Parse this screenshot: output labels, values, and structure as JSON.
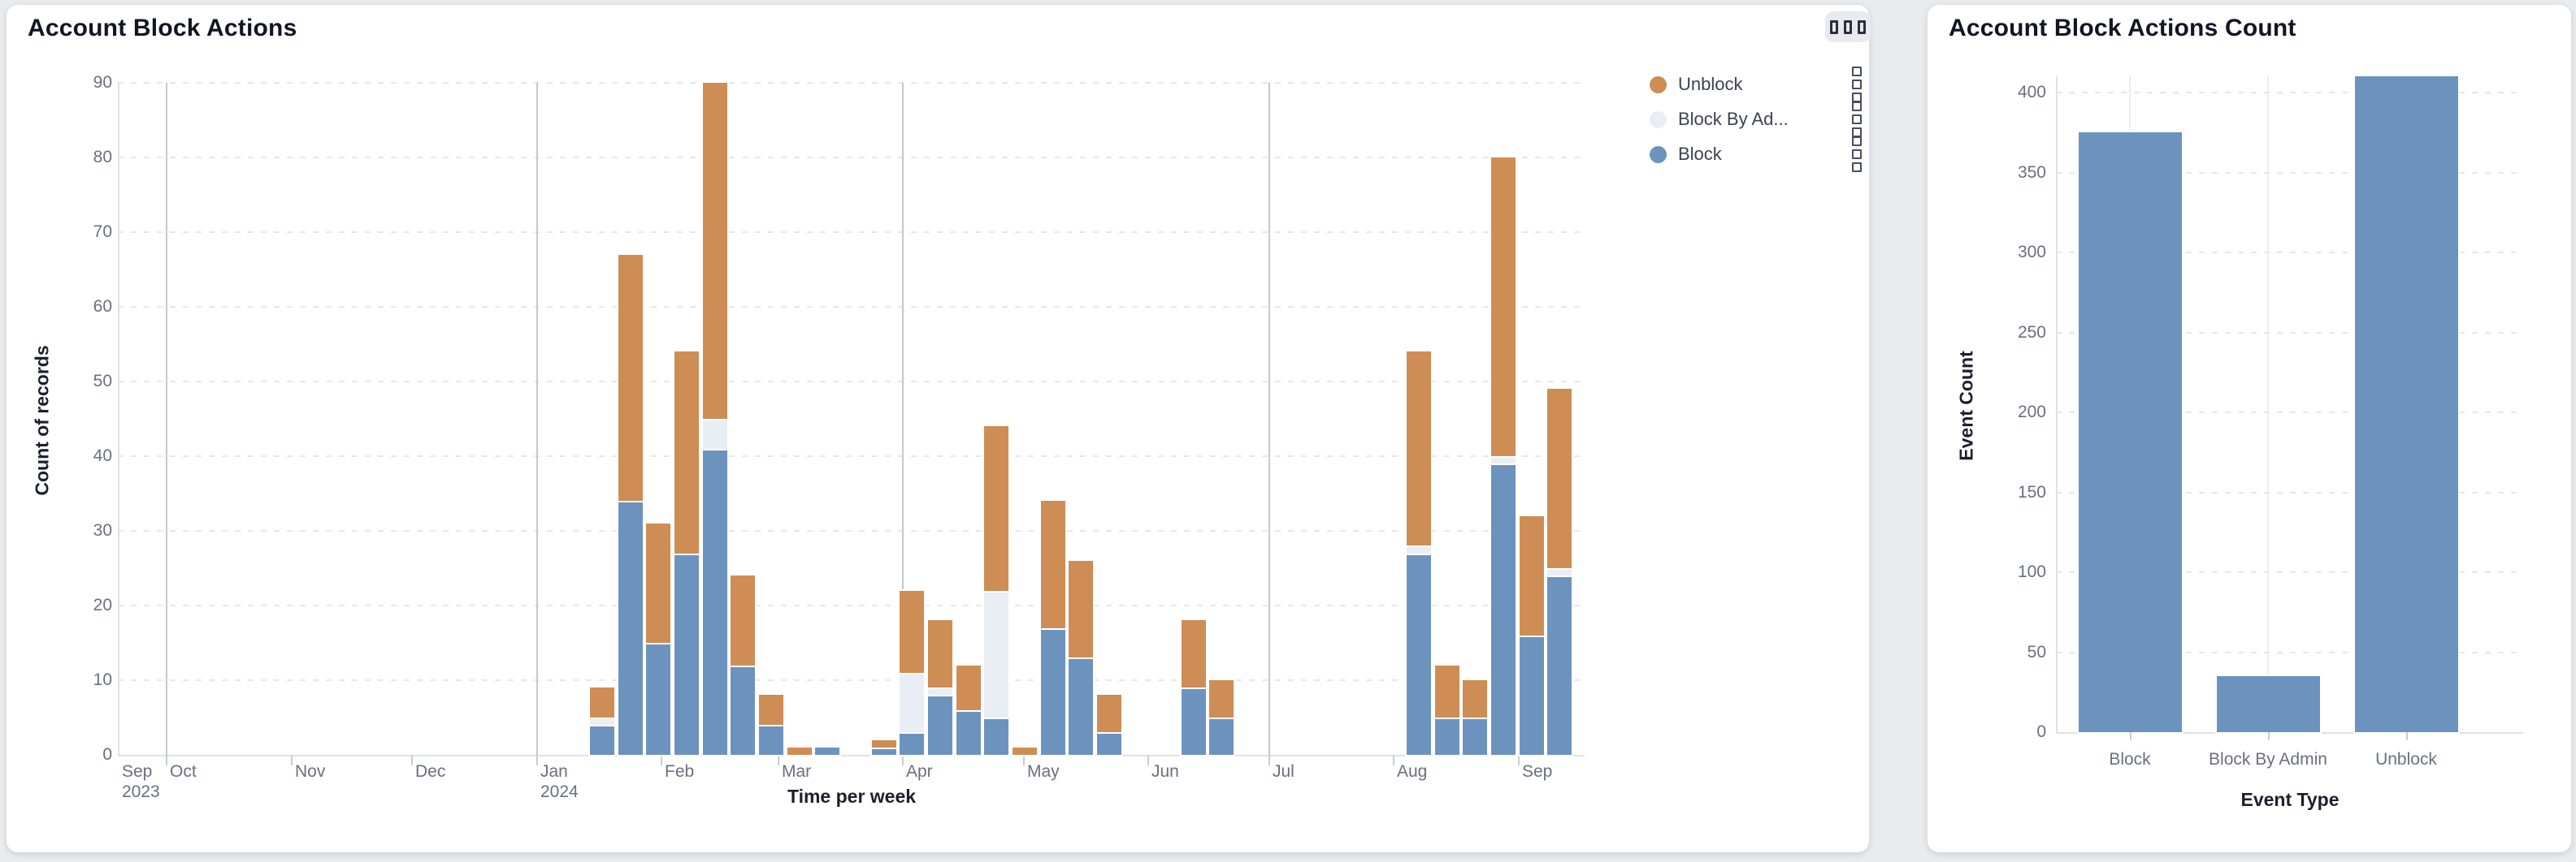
{
  "page": {
    "background": "#e9ebee"
  },
  "left_card": {
    "title": "Account Block Actions",
    "options_icon": "squares-menu-icon",
    "legend": [
      {
        "label": "Unblock",
        "color": "#cd8d54",
        "handle_icon": "drag-handle-icon"
      },
      {
        "label": "Block By Ad...",
        "color": "#e9edf4",
        "handle_icon": "drag-handle-icon"
      },
      {
        "label": "Block",
        "color": "#6c93be",
        "handle_icon": "drag-handle-icon"
      }
    ]
  },
  "right_card": {
    "title": "Account Block Actions Count"
  },
  "chart_data": [
    {
      "type": "bar",
      "stacked": true,
      "title": "Account Block Actions",
      "xlabel": "Time per week",
      "ylabel": "Count of records",
      "ylim": [
        0,
        90
      ],
      "ytick_step": 10,
      "grid": "dashed-horizontal",
      "legend_position": "top-right",
      "x_domain": [
        "2023-09-19",
        "2024-09-16"
      ],
      "months": [
        {
          "label": "Sep",
          "sub": "2023",
          "date": "2023-09-19"
        },
        {
          "label": "Oct",
          "date": "2023-10-01"
        },
        {
          "label": "Nov",
          "date": "2023-11-01"
        },
        {
          "label": "Dec",
          "date": "2023-12-01"
        },
        {
          "label": "Jan",
          "sub": "2024",
          "date": "2024-01-01"
        },
        {
          "label": "Feb",
          "date": "2024-02-01"
        },
        {
          "label": "Mar",
          "date": "2024-03-01"
        },
        {
          "label": "Apr",
          "date": "2024-04-01"
        },
        {
          "label": "May",
          "date": "2024-05-01"
        },
        {
          "label": "Jun",
          "date": "2024-06-01"
        },
        {
          "label": "Jul",
          "date": "2024-07-01"
        },
        {
          "label": "Aug",
          "date": "2024-08-01"
        },
        {
          "label": "Sep",
          "date": "2024-09-01"
        }
      ],
      "quarter_gridlines": [
        "2023-10-01",
        "2024-01-01",
        "2024-04-01",
        "2024-07-01"
      ],
      "stack_order": [
        "Block",
        "Block By Admin",
        "Unblock"
      ],
      "series_colors": {
        "Block": "#6c93be",
        "Block By Admin": "#e9edf4",
        "Unblock": "#cd8d54"
      },
      "weeks": [
        {
          "week_start": "2024-01-14",
          "Block": 4,
          "Block By Admin": 1,
          "Unblock": 4
        },
        {
          "week_start": "2024-01-21",
          "Block": 34,
          "Block By Admin": 0,
          "Unblock": 33
        },
        {
          "week_start": "2024-01-28",
          "Block": 15,
          "Block By Admin": 0,
          "Unblock": 16
        },
        {
          "week_start": "2024-02-04",
          "Block": 27,
          "Block By Admin": 0,
          "Unblock": 27
        },
        {
          "week_start": "2024-02-11",
          "Block": 41,
          "Block By Admin": 4,
          "Unblock": 45
        },
        {
          "week_start": "2024-02-18",
          "Block": 12,
          "Block By Admin": 0,
          "Unblock": 12
        },
        {
          "week_start": "2024-02-25",
          "Block": 4,
          "Block By Admin": 0,
          "Unblock": 4
        },
        {
          "week_start": "2024-03-03",
          "Block": 0,
          "Block By Admin": 0,
          "Unblock": 1
        },
        {
          "week_start": "2024-03-10",
          "Block": 1,
          "Block By Admin": 0,
          "Unblock": 0
        },
        {
          "week_start": "2024-03-24",
          "Block": 1,
          "Block By Admin": 0,
          "Unblock": 1
        },
        {
          "week_start": "2024-03-31",
          "Block": 3,
          "Block By Admin": 8,
          "Unblock": 11
        },
        {
          "week_start": "2024-04-07",
          "Block": 8,
          "Block By Admin": 1,
          "Unblock": 9
        },
        {
          "week_start": "2024-04-14",
          "Block": 6,
          "Block By Admin": 0,
          "Unblock": 6
        },
        {
          "week_start": "2024-04-21",
          "Block": 5,
          "Block By Admin": 17,
          "Unblock": 22
        },
        {
          "week_start": "2024-04-28",
          "Block": 0,
          "Block By Admin": 0,
          "Unblock": 1
        },
        {
          "week_start": "2024-05-05",
          "Block": 17,
          "Block By Admin": 0,
          "Unblock": 17
        },
        {
          "week_start": "2024-05-12",
          "Block": 13,
          "Block By Admin": 0,
          "Unblock": 13
        },
        {
          "week_start": "2024-05-19",
          "Block": 3,
          "Block By Admin": 0,
          "Unblock": 5
        },
        {
          "week_start": "2024-06-09",
          "Block": 9,
          "Block By Admin": 0,
          "Unblock": 9
        },
        {
          "week_start": "2024-06-16",
          "Block": 5,
          "Block By Admin": 0,
          "Unblock": 5
        },
        {
          "week_start": "2024-08-04",
          "Block": 27,
          "Block By Admin": 1,
          "Unblock": 26
        },
        {
          "week_start": "2024-08-11",
          "Block": 5,
          "Block By Admin": 0,
          "Unblock": 7
        },
        {
          "week_start": "2024-08-18",
          "Block": 5,
          "Block By Admin": 0,
          "Unblock": 5
        },
        {
          "week_start": "2024-08-25",
          "Block": 39,
          "Block By Admin": 1,
          "Unblock": 40
        },
        {
          "week_start": "2024-09-01",
          "Block": 16,
          "Block By Admin": 0,
          "Unblock": 16
        },
        {
          "week_start": "2024-09-08",
          "Block": 24,
          "Block By Admin": 1,
          "Unblock": 24
        }
      ]
    },
    {
      "type": "bar",
      "title": "Account Block Actions Count",
      "xlabel": "Event Type",
      "ylabel": "Event Count",
      "categories": [
        "Block",
        "Block By Admin",
        "Unblock"
      ],
      "values": [
        375,
        35,
        410
      ],
      "ylim": [
        0,
        410
      ],
      "ytick_step": 50,
      "yticks": [
        0,
        50,
        100,
        150,
        200,
        250,
        300,
        350,
        400
      ],
      "bar_color": "#6c93be",
      "grid": "dashed-horizontal"
    }
  ]
}
